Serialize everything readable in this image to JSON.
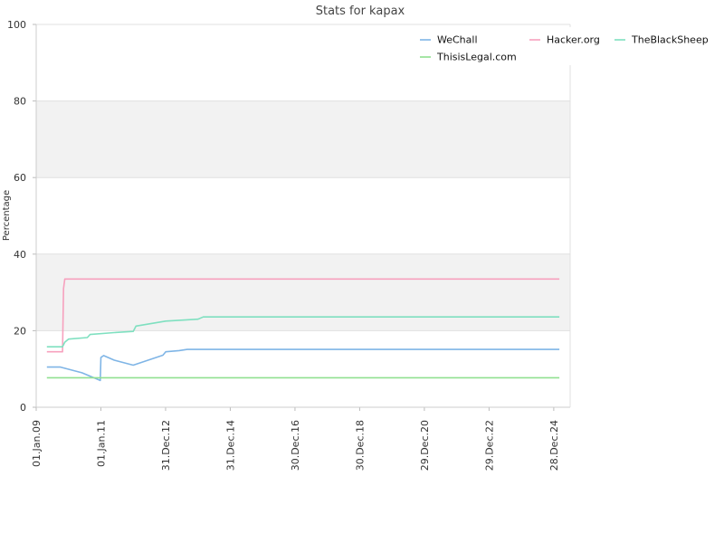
{
  "chart_data": {
    "type": "line",
    "title": "Stats for kapax",
    "xlabel": "",
    "ylabel": "Percentage",
    "ylim": [
      0,
      100
    ],
    "yticks": [
      0,
      20,
      40,
      60,
      80,
      100
    ],
    "grid": "horizontal bands",
    "legend_position": "top-right",
    "x_tick_labels": [
      "01.Jan.09",
      "01.Jan.11",
      "31.Dec.12",
      "31.Dec.14",
      "30.Dec.16",
      "30.Dec.18",
      "29.Dec.20",
      "29.Dec.22",
      "28.Dec.24"
    ],
    "series": [
      {
        "name": "WeChall",
        "color": "#7fb5e6",
        "points": [
          [
            "2009-05-01",
            10.5
          ],
          [
            "2009-10-01",
            10.5
          ],
          [
            "2010-06-01",
            9.0
          ],
          [
            "2010-12-25",
            7.0
          ],
          [
            "2011-01-01",
            13.0
          ],
          [
            "2011-02-01",
            13.5
          ],
          [
            "2011-06-01",
            12.3
          ],
          [
            "2012-01-01",
            11.0
          ],
          [
            "2012-12-01",
            13.6
          ],
          [
            "2013-01-01",
            14.5
          ],
          [
            "2013-06-01",
            14.8
          ],
          [
            "2013-09-01",
            15.1
          ],
          [
            "2025-03-01",
            15.1
          ]
        ]
      },
      {
        "name": "Hacker.org",
        "color": "#f7a1be",
        "points": [
          [
            "2009-05-01",
            14.5
          ],
          [
            "2009-10-25",
            14.5
          ],
          [
            "2009-11-05",
            31.0
          ],
          [
            "2009-11-20",
            33.5
          ],
          [
            "2025-03-01",
            33.5
          ]
        ]
      },
      {
        "name": "TheBlackSheep",
        "color": "#7fe0c0",
        "points": [
          [
            "2009-05-01",
            15.8
          ],
          [
            "2009-10-25",
            15.8
          ],
          [
            "2009-11-20",
            17.0
          ],
          [
            "2010-01-01",
            17.8
          ],
          [
            "2010-08-01",
            18.2
          ],
          [
            "2010-09-01",
            19.0
          ],
          [
            "2011-06-01",
            19.5
          ],
          [
            "2012-01-01",
            19.8
          ],
          [
            "2012-02-01",
            21.2
          ],
          [
            "2013-01-01",
            22.5
          ],
          [
            "2014-01-01",
            23.0
          ],
          [
            "2014-03-01",
            23.6
          ],
          [
            "2025-03-01",
            23.6
          ]
        ]
      },
      {
        "name": "ThisisLegal.com",
        "color": "#90e090",
        "points": [
          [
            "2009-05-01",
            7.7
          ],
          [
            "2025-03-01",
            7.7
          ]
        ]
      }
    ]
  }
}
